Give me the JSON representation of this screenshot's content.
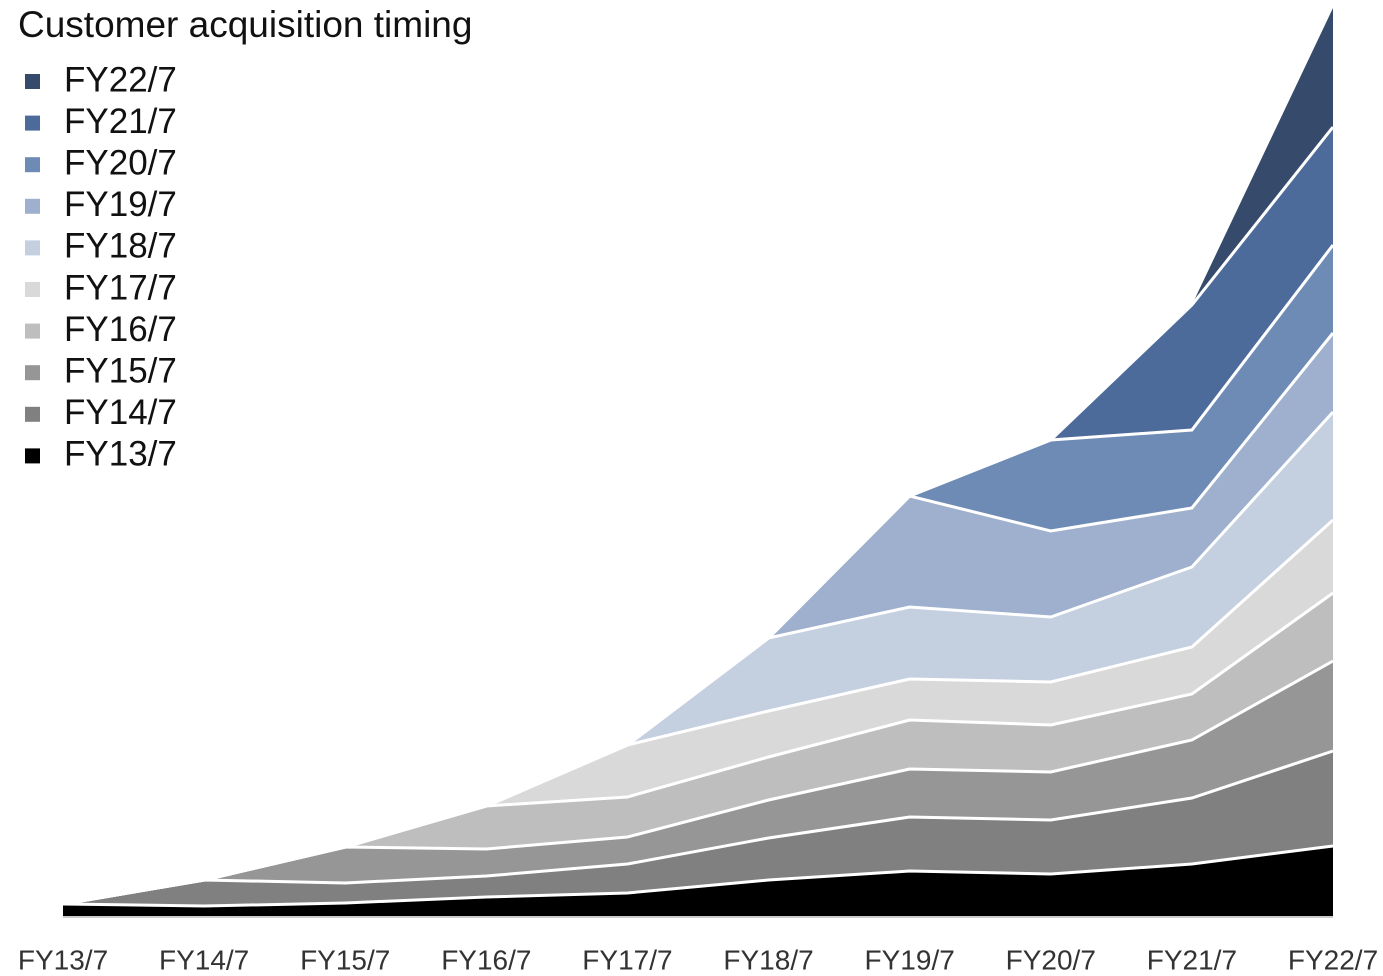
{
  "chart_data": {
    "type": "stacked_area",
    "title": "Customer acquisition timing",
    "categories": [
      "FY13/7",
      "FY14/7",
      "FY15/7",
      "FY16/7",
      "FY17/7",
      "FY18/7",
      "FY19/7",
      "FY20/7",
      "FY21/7",
      "FY22/7"
    ],
    "ylim": [
      0,
      909
    ],
    "series": [
      {
        "name": "FY13/7",
        "color": "#000000",
        "values": [
          13,
          11,
          14,
          20,
          24,
          37,
          46,
          43,
          53,
          71
        ]
      },
      {
        "name": "FY14/7",
        "color": "#808080",
        "values": [
          0,
          26,
          20,
          21,
          29,
          42,
          54,
          54,
          66,
          95
        ]
      },
      {
        "name": "FY15/7",
        "color": "#969696",
        "values": [
          0,
          0,
          36,
          27,
          27,
          38,
          48,
          48,
          58,
          90
        ]
      },
      {
        "name": "FY16/7",
        "color": "#bebebe",
        "values": [
          0,
          0,
          0,
          43,
          40,
          43,
          49,
          47,
          46,
          68
        ]
      },
      {
        "name": "FY17/7",
        "color": "#d9d9d9",
        "values": [
          0,
          0,
          0,
          0,
          52,
          46,
          41,
          43,
          47,
          73
        ]
      },
      {
        "name": "FY18/7",
        "color": "#c4cfe0",
        "values": [
          0,
          0,
          0,
          0,
          0,
          73,
          72,
          65,
          80,
          108
        ]
      },
      {
        "name": "FY19/7",
        "color": "#9eb0cd",
        "values": [
          0,
          0,
          0,
          0,
          0,
          0,
          111,
          86,
          59,
          79
        ]
      },
      {
        "name": "FY20/7",
        "color": "#6e8bb6",
        "values": [
          0,
          0,
          0,
          0,
          0,
          0,
          0,
          91,
          78,
          88
        ]
      },
      {
        "name": "FY21/7",
        "color": "#4c6b9a",
        "values": [
          0,
          0,
          0,
          0,
          0,
          0,
          0,
          0,
          125,
          118
        ]
      },
      {
        "name": "FY22/7",
        "color": "#364b6c",
        "values": [
          0,
          0,
          0,
          0,
          0,
          0,
          0,
          0,
          0,
          119
        ]
      }
    ]
  }
}
